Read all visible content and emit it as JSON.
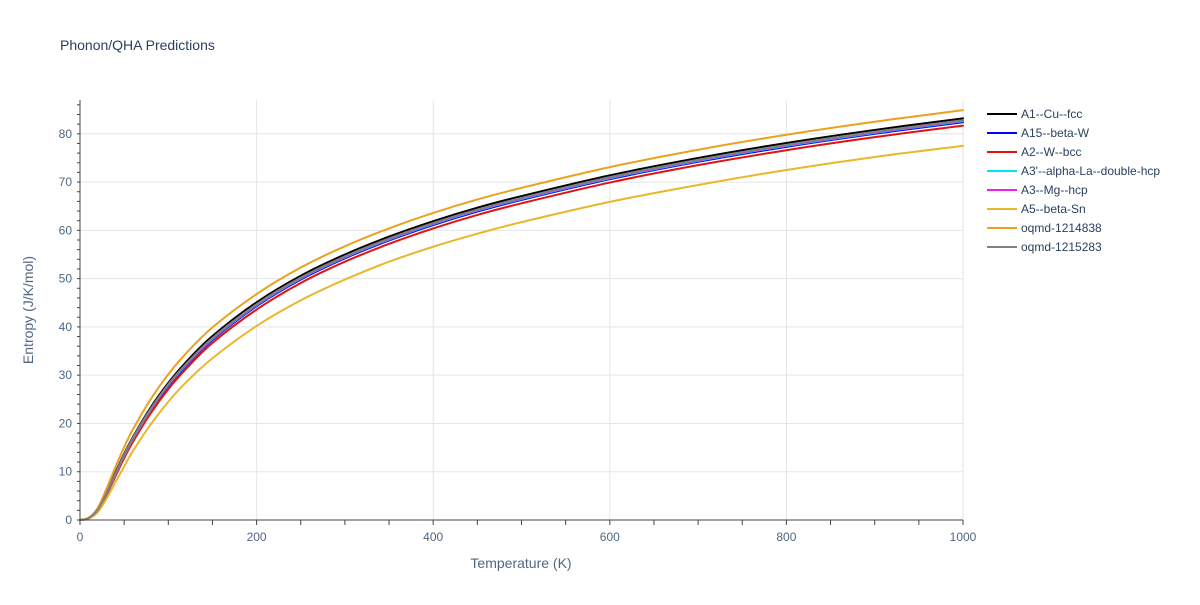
{
  "chart_data": {
    "type": "line",
    "title": "Phonon/QHA Predictions",
    "xlabel": "Temperature (K)",
    "ylabel": "Entropy (J/K/mol)",
    "xlim": [
      0,
      1000
    ],
    "ylim": [
      0,
      87
    ],
    "xticks": [
      0,
      200,
      400,
      600,
      800,
      1000
    ],
    "yticks": [
      0,
      10,
      20,
      30,
      40,
      50,
      60,
      70,
      80
    ],
    "grid": true,
    "legend_position": "right",
    "x": [
      0,
      10,
      20,
      30,
      40,
      50,
      60,
      80,
      100,
      120,
      150,
      200,
      250,
      300,
      350,
      400,
      450,
      500,
      600,
      700,
      800,
      900,
      1000
    ],
    "series": [
      {
        "name": "A1--Cu--fcc",
        "color": "#000000",
        "width": 2,
        "values": [
          0,
          0.4,
          2.2,
          5.8,
          9.8,
          13.7,
          17.2,
          23.3,
          28.4,
          32.7,
          38.1,
          45.1,
          50.6,
          55.0,
          58.7,
          61.9,
          64.7,
          67.1,
          71.4,
          75.0,
          78.1,
          80.8,
          83.2
        ]
      },
      {
        "name": "A15--beta-W",
        "color": "#0000ff",
        "width": 2,
        "values": [
          0,
          0.4,
          2.0,
          5.4,
          9.3,
          13.1,
          16.6,
          22.6,
          27.7,
          31.9,
          37.3,
          44.3,
          49.8,
          54.2,
          57.9,
          61.1,
          63.9,
          66.3,
          70.6,
          74.2,
          77.3,
          80.0,
          82.4
        ]
      },
      {
        "name": "A2--W--bcc",
        "color": "#e3120b",
        "width": 2,
        "values": [
          0,
          0.3,
          1.9,
          5.2,
          9.0,
          12.8,
          16.2,
          22.1,
          27.1,
          31.3,
          36.7,
          43.6,
          49.1,
          53.5,
          57.2,
          60.4,
          63.2,
          65.6,
          69.9,
          73.5,
          76.6,
          79.3,
          81.7
        ]
      },
      {
        "name": "A3'--alpha-La--double-hcp",
        "color": "#00e5ee",
        "width": 2,
        "values": [
          0,
          0.4,
          2.0,
          5.5,
          9.4,
          13.3,
          16.8,
          22.8,
          27.9,
          32.1,
          37.5,
          44.5,
          50.0,
          54.4,
          58.1,
          61.3,
          64.1,
          66.5,
          70.8,
          74.4,
          77.5,
          80.2,
          82.6
        ]
      },
      {
        "name": "A3--Mg--hcp",
        "color": "#ee20ee",
        "width": 2,
        "values": [
          0,
          0.4,
          2.1,
          5.6,
          9.5,
          13.4,
          16.9,
          22.9,
          28.0,
          32.2,
          37.6,
          44.6,
          50.1,
          54.5,
          58.2,
          61.4,
          64.2,
          66.6,
          70.9,
          74.5,
          77.6,
          80.3,
          82.7
        ]
      },
      {
        "name": "A5--beta-Sn",
        "color": "#eab72a",
        "width": 2,
        "values": [
          0,
          0.3,
          1.6,
          4.4,
          7.8,
          11.1,
          14.3,
          19.8,
          24.5,
          28.5,
          33.5,
          40.2,
          45.5,
          49.8,
          53.5,
          56.6,
          59.3,
          61.7,
          65.9,
          69.4,
          72.5,
          75.2,
          77.5
        ]
      },
      {
        "name": "oqmd-1214838",
        "color": "#eaa21e",
        "width": 2,
        "values": [
          0,
          0.5,
          2.5,
          6.5,
          10.9,
          15.1,
          18.8,
          25.0,
          30.2,
          34.5,
          39.9,
          46.8,
          52.3,
          56.7,
          60.4,
          63.6,
          66.4,
          68.8,
          73.1,
          76.7,
          79.8,
          82.5,
          84.9
        ]
      },
      {
        "name": "oqmd-1215283",
        "color": "#808080",
        "width": 2,
        "values": [
          0,
          0.4,
          2.1,
          5.6,
          9.6,
          13.5,
          17.0,
          23.0,
          28.1,
          32.3,
          37.7,
          44.7,
          50.2,
          54.6,
          58.3,
          61.5,
          64.3,
          66.7,
          71.0,
          74.6,
          77.7,
          80.4,
          82.8
        ]
      }
    ]
  }
}
